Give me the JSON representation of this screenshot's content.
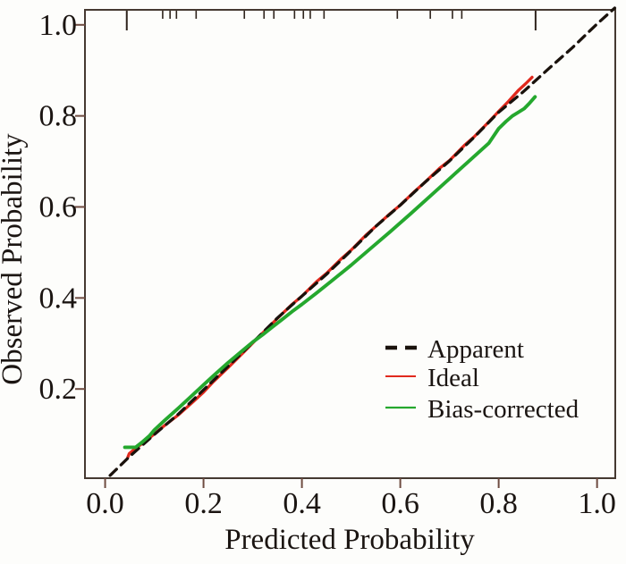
{
  "figure": {
    "background": "#fdfdfb"
  },
  "chart_data": {
    "type": "line",
    "title": "",
    "xlabel": "Predicted Probability",
    "ylabel": "Observed Probability",
    "xlim": [
      -0.041,
      1.037
    ],
    "ylim": [
      0.004,
      1.033
    ],
    "xticks": [
      0.0,
      0.2,
      0.4,
      0.6,
      0.8,
      1.0
    ],
    "yticks": [
      0.2,
      0.4,
      0.6,
      0.8,
      1.0
    ],
    "grid": false,
    "legend_position": "lower right inside plot",
    "colors": {
      "frame": "#453931",
      "tick": "#6f4c41",
      "rug": "#2f241d"
    },
    "series": [
      {
        "name": "Apparent",
        "color": "#1a120c",
        "style": "dashed",
        "dash": "10 7",
        "width": 3.3,
        "points": [
          [
            0.01,
            0.01
          ],
          [
            0.05,
            0.052
          ],
          [
            0.1,
            0.1
          ],
          [
            0.15,
            0.146
          ],
          [
            0.2,
            0.198
          ],
          [
            0.25,
            0.25
          ],
          [
            0.3,
            0.302
          ],
          [
            0.35,
            0.356
          ],
          [
            0.4,
            0.404
          ],
          [
            0.45,
            0.452
          ],
          [
            0.5,
            0.504
          ],
          [
            0.55,
            0.557
          ],
          [
            0.6,
            0.604
          ],
          [
            0.65,
            0.654
          ],
          [
            0.7,
            0.701
          ],
          [
            0.75,
            0.753
          ],
          [
            0.8,
            0.808
          ],
          [
            0.85,
            0.853
          ],
          [
            0.9,
            0.902
          ],
          [
            0.95,
            0.95
          ],
          [
            1.0,
            1.002
          ],
          [
            1.036,
            1.037
          ]
        ]
      },
      {
        "name": "Ideal",
        "color": "#e1291d",
        "style": "solid",
        "dash": "",
        "width": 3.3,
        "points": [
          [
            0.046,
            0.05
          ],
          [
            0.049,
            0.058
          ],
          [
            0.06,
            0.068
          ],
          [
            0.08,
            0.084
          ],
          [
            0.1,
            0.101
          ],
          [
            0.12,
            0.119
          ],
          [
            0.15,
            0.144
          ],
          [
            0.18,
            0.173
          ],
          [
            0.2,
            0.193
          ],
          [
            0.22,
            0.216
          ],
          [
            0.25,
            0.247
          ],
          [
            0.28,
            0.279
          ],
          [
            0.3,
            0.301
          ],
          [
            0.32,
            0.323
          ],
          [
            0.35,
            0.355
          ],
          [
            0.38,
            0.386
          ],
          [
            0.4,
            0.404
          ],
          [
            0.43,
            0.436
          ],
          [
            0.45,
            0.454
          ],
          [
            0.48,
            0.486
          ],
          [
            0.5,
            0.505
          ],
          [
            0.53,
            0.538
          ],
          [
            0.55,
            0.557
          ],
          [
            0.58,
            0.586
          ],
          [
            0.6,
            0.604
          ],
          [
            0.63,
            0.635
          ],
          [
            0.65,
            0.654
          ],
          [
            0.68,
            0.685
          ],
          [
            0.7,
            0.702
          ],
          [
            0.73,
            0.735
          ],
          [
            0.75,
            0.754
          ],
          [
            0.78,
            0.787
          ],
          [
            0.8,
            0.81
          ],
          [
            0.82,
            0.832
          ],
          [
            0.84,
            0.856
          ],
          [
            0.855,
            0.871
          ],
          [
            0.868,
            0.885
          ]
        ]
      },
      {
        "name": "Bias-corrected",
        "color": "#25a82e",
        "style": "solid",
        "dash": "",
        "width": 3.9,
        "points": [
          [
            0.04,
            0.072
          ],
          [
            0.062,
            0.072
          ],
          [
            0.075,
            0.083
          ],
          [
            0.09,
            0.097
          ],
          [
            0.1,
            0.11
          ],
          [
            0.12,
            0.13
          ],
          [
            0.15,
            0.159
          ],
          [
            0.18,
            0.189
          ],
          [
            0.2,
            0.209
          ],
          [
            0.22,
            0.229
          ],
          [
            0.25,
            0.258
          ],
          [
            0.28,
            0.285
          ],
          [
            0.3,
            0.303
          ],
          [
            0.32,
            0.319
          ],
          [
            0.34,
            0.336
          ],
          [
            0.36,
            0.353
          ],
          [
            0.38,
            0.37
          ],
          [
            0.4,
            0.386
          ],
          [
            0.43,
            0.411
          ],
          [
            0.46,
            0.437
          ],
          [
            0.5,
            0.472
          ],
          [
            0.54,
            0.509
          ],
          [
            0.58,
            0.546
          ],
          [
            0.62,
            0.584
          ],
          [
            0.66,
            0.623
          ],
          [
            0.7,
            0.662
          ],
          [
            0.74,
            0.701
          ],
          [
            0.78,
            0.74
          ],
          [
            0.8,
            0.772
          ],
          [
            0.815,
            0.788
          ],
          [
            0.828,
            0.8
          ],
          [
            0.84,
            0.808
          ],
          [
            0.852,
            0.816
          ],
          [
            0.862,
            0.827
          ],
          [
            0.874,
            0.842
          ]
        ]
      }
    ],
    "rug": {
      "short": [
        0.117,
        0.132,
        0.145,
        0.185,
        0.283,
        0.323,
        0.343,
        0.385,
        0.403,
        0.417,
        0.445,
        0.594,
        0.661,
        0.706,
        0.725
      ],
      "long": [
        0.044,
        0.875
      ]
    }
  }
}
